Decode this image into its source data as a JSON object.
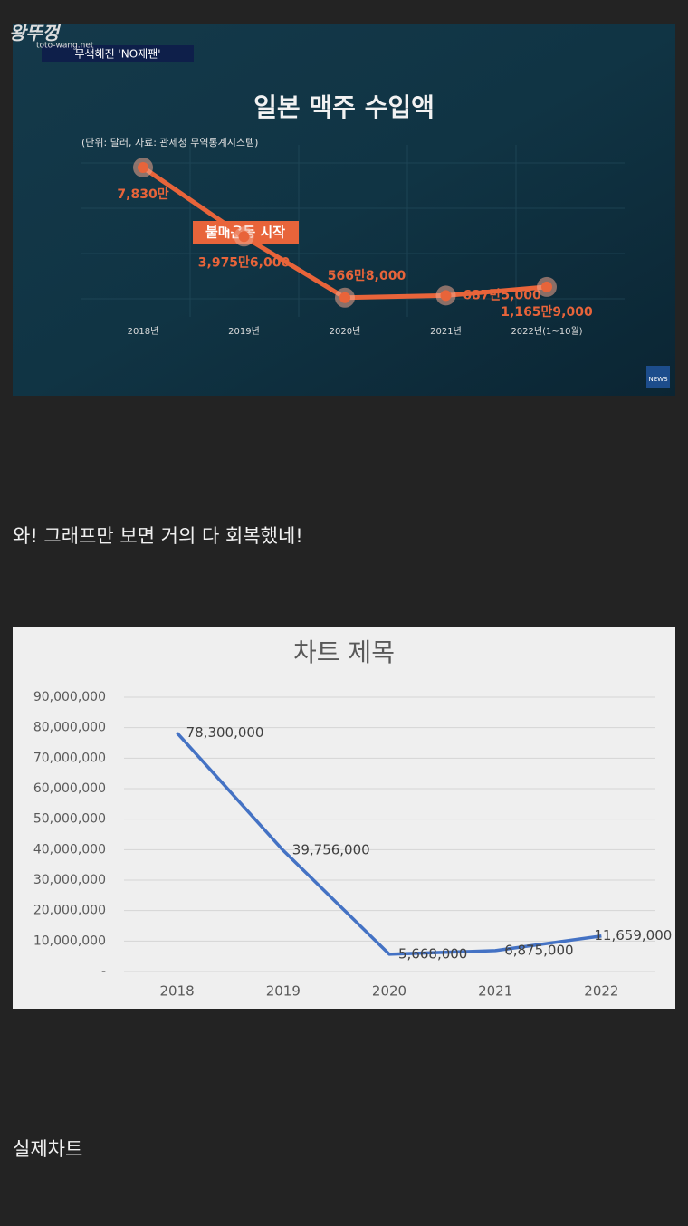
{
  "watermark": {
    "logo": "왕뚜껑",
    "site": "toto-wang.net"
  },
  "news_tag": "무색해진 'NO재팬'",
  "news_logo": "NEWS",
  "chart_data": [
    {
      "type": "line",
      "title": "일본 맥주 수입액",
      "subtitle": "(단위: 달러, 자료: 관세청 무역통계시스템)",
      "categories": [
        "2018년",
        "2019년",
        "2020년",
        "2021년",
        "2022년(1~10월)"
      ],
      "values": [
        78300000,
        39756000,
        5668000,
        6875000,
        11659000
      ],
      "value_labels": [
        "7,830만",
        "3,975만6,000",
        "566만8,000",
        "687만5,000",
        "1,165만9,000"
      ],
      "color": "#e8643a",
      "annotation": "불매운동 시작"
    },
    {
      "type": "line",
      "title": "차트 제목",
      "categories": [
        "2018",
        "2019",
        "2020",
        "2021",
        "2022"
      ],
      "values": [
        78300000,
        39756000,
        5668000,
        6875000,
        11659000
      ],
      "value_labels": [
        "78,300,000",
        "39,756,000",
        "5,668,000",
        "6,875,000",
        "11,659,000"
      ],
      "color": "#4472c4",
      "ylim": [
        0,
        90000000
      ],
      "yticks": [
        {
          "value": 0,
          "label": "-"
        },
        {
          "value": 10000000,
          "label": "10,000,000"
        },
        {
          "value": 20000000,
          "label": "20,000,000"
        },
        {
          "value": 30000000,
          "label": "30,000,000"
        },
        {
          "value": 40000000,
          "label": "40,000,000"
        },
        {
          "value": 50000000,
          "label": "50,000,000"
        },
        {
          "value": 60000000,
          "label": "60,000,000"
        },
        {
          "value": 70000000,
          "label": "70,000,000"
        },
        {
          "value": 80000000,
          "label": "80,000,000"
        },
        {
          "value": 90000000,
          "label": "90,000,000"
        }
      ],
      "grid": true
    }
  ],
  "caption1": "와! 그래프만 보면 거의 다 회복했네!",
  "caption2": "실제차트"
}
